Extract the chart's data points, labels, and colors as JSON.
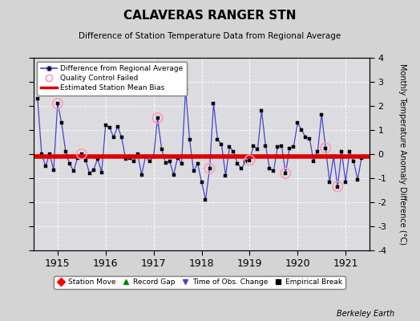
{
  "title": "CALAVERAS RANGER STN",
  "subtitle": "Difference of Station Temperature Data from Regional Average",
  "ylabel_right": "Monthly Temperature Anomaly Difference (°C)",
  "watermark": "Berkeley Earth",
  "ylim": [
    -4,
    4
  ],
  "xlim_start": 1914.5,
  "xlim_end": 1921.5,
  "xticks": [
    1915,
    1916,
    1917,
    1918,
    1919,
    1920,
    1921
  ],
  "yticks": [
    -4,
    -3,
    -2,
    -1,
    0,
    1,
    2,
    3,
    4
  ],
  "bias_line_y": -0.1,
  "fig_bg_color": "#d4d4d4",
  "plot_bg_color": "#dcdce0",
  "line_color": "#4444cc",
  "bias_color": "#dd0000",
  "qc_color": "#ff99bb",
  "data": {
    "x": [
      1914.583,
      1914.667,
      1914.75,
      1914.833,
      1914.917,
      1915.0,
      1915.083,
      1915.167,
      1915.25,
      1915.333,
      1915.417,
      1915.5,
      1915.583,
      1915.667,
      1915.75,
      1915.833,
      1915.917,
      1916.0,
      1916.083,
      1916.167,
      1916.25,
      1916.333,
      1916.417,
      1916.5,
      1916.583,
      1916.667,
      1916.75,
      1916.833,
      1916.917,
      1917.0,
      1917.083,
      1917.167,
      1917.25,
      1917.333,
      1917.417,
      1917.5,
      1917.583,
      1917.667,
      1917.75,
      1917.833,
      1917.917,
      1918.0,
      1918.083,
      1918.167,
      1918.25,
      1918.333,
      1918.417,
      1918.5,
      1918.583,
      1918.667,
      1918.75,
      1918.833,
      1918.917,
      1919.0,
      1919.083,
      1919.167,
      1919.25,
      1919.333,
      1919.417,
      1919.5,
      1919.583,
      1919.667,
      1919.75,
      1919.833,
      1919.917,
      1920.0,
      1920.083,
      1920.167,
      1920.25,
      1920.333,
      1920.417,
      1920.5,
      1920.583,
      1920.667,
      1920.75,
      1920.833,
      1920.917,
      1921.0,
      1921.083,
      1921.167,
      1921.25,
      1921.333,
      1921.417
    ],
    "y": [
      2.3,
      0.0,
      -0.5,
      0.0,
      -0.65,
      2.1,
      1.3,
      0.1,
      -0.4,
      -0.7,
      -0.15,
      0.0,
      -0.25,
      -0.8,
      -0.65,
      -0.2,
      -0.75,
      1.2,
      1.1,
      0.7,
      1.15,
      0.7,
      -0.2,
      -0.15,
      -0.3,
      0.0,
      -0.85,
      -0.1,
      -0.3,
      -0.1,
      1.5,
      0.2,
      -0.35,
      -0.3,
      -0.85,
      -0.15,
      -0.4,
      2.7,
      0.6,
      -0.7,
      -0.4,
      -1.15,
      -1.9,
      -0.6,
      2.1,
      0.6,
      0.4,
      -0.9,
      0.3,
      0.1,
      -0.4,
      -0.6,
      -0.3,
      -0.25,
      0.35,
      0.2,
      1.8,
      0.35,
      -0.6,
      -0.7,
      0.3,
      0.35,
      -0.8,
      0.25,
      0.3,
      1.3,
      1.0,
      0.7,
      0.65,
      -0.3,
      0.1,
      1.65,
      0.25,
      -1.15,
      -0.1,
      -1.35,
      0.1,
      -1.15,
      0.1,
      -0.3,
      -1.05,
      -0.15,
      -0.1
    ],
    "qc_failed_indices": [
      5,
      11,
      30,
      43,
      53,
      62,
      72,
      75
    ]
  },
  "legend_upper": {
    "line_label": "Difference from Regional Average",
    "qc_label": "Quality Control Failed",
    "bias_label": "Estimated Station Mean Bias"
  },
  "legend_lower": {
    "station_move_label": "Station Move",
    "record_gap_label": "Record Gap",
    "obs_change_label": "Time of Obs. Change",
    "empirical_break_label": "Empirical Break"
  }
}
